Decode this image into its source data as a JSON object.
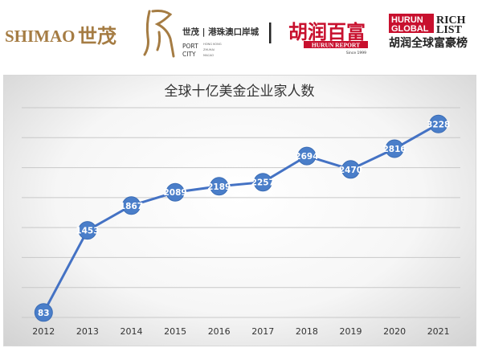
{
  "logos": {
    "shimao_latin": "SHIMAO",
    "shimao_cn": "世茂",
    "portcity_cn": "世茂 | 港珠澳口岸城",
    "portcity_port": "PORT",
    "portcity_city": "CITY",
    "portcity_small_1": "HONG KONG",
    "portcity_small_2": "ZHUHAI",
    "portcity_small_3": "MACAO",
    "hurun_cn": "胡润百富",
    "hurun_report": "HURUN REPORT",
    "hurun_since": "Since 1999",
    "global_hurun": "HURUN",
    "global_global": "GLOBAL",
    "global_rich": "RICH",
    "global_list": "LIST",
    "global_cn": "胡润全球富豪榜"
  },
  "colors": {
    "line": "#4472c4",
    "marker": "#4a7ec9",
    "grid": "#c8c8c8",
    "axis_text": "#333333",
    "title": "#333333",
    "hurun_red": "#c8102e",
    "shimao_gold": "#a57c43"
  },
  "chart_data": {
    "type": "line",
    "title": "全球十亿美金企业家人数",
    "xlabel": "",
    "ylabel": "",
    "categories": [
      "2012",
      "2013",
      "2014",
      "2015",
      "2016",
      "2017",
      "2018",
      "2019",
      "2020",
      "2021"
    ],
    "values": [
      83,
      1453,
      1867,
      2089,
      2189,
      2257,
      2694,
      2470,
      2816,
      3228
    ],
    "ylim": [
      0,
      3500
    ],
    "y_gridlines": [
      0,
      500,
      1000,
      1500,
      2000,
      2500,
      3000,
      3500
    ],
    "grid": true,
    "y_tick_labels_visible": false,
    "data_labels": true
  }
}
